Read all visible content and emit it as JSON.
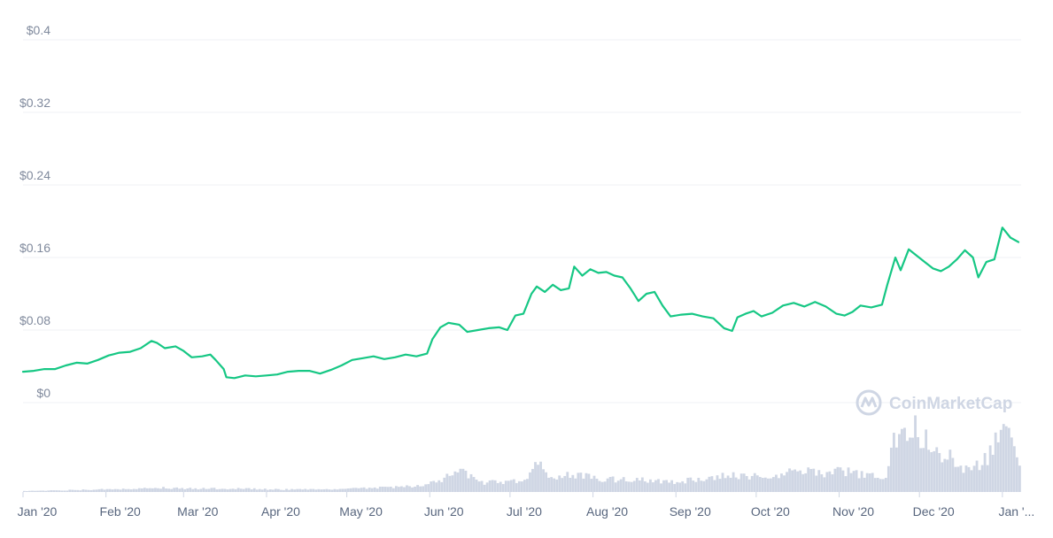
{
  "watermark": {
    "text": "CoinMarketCap",
    "icon": "coinmarketcap-logo-icon"
  },
  "colors": {
    "line": "#16c784",
    "volume": "#cfd6e4",
    "grid": "#eff2f5",
    "axis_text": "#808a9d"
  },
  "chart_data": {
    "type": "line",
    "title": "",
    "xlabel": "",
    "ylabel": "",
    "x_range": [
      "2020-01-01",
      "2021-01-08"
    ],
    "ylim": [
      0,
      0.4
    ],
    "y_ticks": [
      "$0",
      "$0.08",
      "$0.16",
      "$0.24",
      "$0.32",
      "$0.4"
    ],
    "y_tick_values": [
      0,
      0.08,
      0.16,
      0.24,
      0.32,
      0.4
    ],
    "x_ticks": [
      "Jan '20",
      "Feb '20",
      "Mar '20",
      "Apr '20",
      "May '20",
      "Jun '20",
      "Jul '20",
      "Aug '20",
      "Sep '20",
      "Oct '20",
      "Nov '20",
      "Dec '20",
      "Jan '..."
    ],
    "x_tick_dates": [
      "2020-01-01",
      "2020-02-01",
      "2020-03-01",
      "2020-04-01",
      "2020-05-01",
      "2020-06-01",
      "2020-07-01",
      "2020-08-01",
      "2020-09-01",
      "2020-10-01",
      "2020-11-01",
      "2020-12-01",
      "2021-01-01"
    ],
    "grid": true,
    "series": [
      {
        "role": "price",
        "points": [
          [
            "2020-01-01",
            0.034
          ],
          [
            "2020-01-05",
            0.035
          ],
          [
            "2020-01-09",
            0.037
          ],
          [
            "2020-01-13",
            0.037
          ],
          [
            "2020-01-17",
            0.041
          ],
          [
            "2020-01-21",
            0.044
          ],
          [
            "2020-01-25",
            0.043
          ],
          [
            "2020-01-29",
            0.047
          ],
          [
            "2020-02-02",
            0.052
          ],
          [
            "2020-02-06",
            0.055
          ],
          [
            "2020-02-10",
            0.056
          ],
          [
            "2020-02-14",
            0.06
          ],
          [
            "2020-02-18",
            0.068
          ],
          [
            "2020-02-20",
            0.066
          ],
          [
            "2020-02-23",
            0.06
          ],
          [
            "2020-02-27",
            0.062
          ],
          [
            "2020-03-01",
            0.057
          ],
          [
            "2020-03-04",
            0.05
          ],
          [
            "2020-03-08",
            0.051
          ],
          [
            "2020-03-11",
            0.053
          ],
          [
            "2020-03-13",
            0.047
          ],
          [
            "2020-03-16",
            0.037
          ],
          [
            "2020-03-17",
            0.028
          ],
          [
            "2020-03-20",
            0.027
          ],
          [
            "2020-03-24",
            0.03
          ],
          [
            "2020-03-28",
            0.029
          ],
          [
            "2020-04-01",
            0.03
          ],
          [
            "2020-04-05",
            0.031
          ],
          [
            "2020-04-09",
            0.034
          ],
          [
            "2020-04-13",
            0.035
          ],
          [
            "2020-04-17",
            0.035
          ],
          [
            "2020-04-21",
            0.032
          ],
          [
            "2020-04-25",
            0.036
          ],
          [
            "2020-04-29",
            0.041
          ],
          [
            "2020-05-03",
            0.047
          ],
          [
            "2020-05-07",
            0.049
          ],
          [
            "2020-05-11",
            0.051
          ],
          [
            "2020-05-15",
            0.048
          ],
          [
            "2020-05-19",
            0.05
          ],
          [
            "2020-05-23",
            0.053
          ],
          [
            "2020-05-27",
            0.051
          ],
          [
            "2020-05-31",
            0.054
          ],
          [
            "2020-06-02",
            0.07
          ],
          [
            "2020-06-05",
            0.083
          ],
          [
            "2020-06-08",
            0.088
          ],
          [
            "2020-06-12",
            0.086
          ],
          [
            "2020-06-15",
            0.078
          ],
          [
            "2020-06-19",
            0.08
          ],
          [
            "2020-06-23",
            0.082
          ],
          [
            "2020-06-27",
            0.083
          ],
          [
            "2020-06-30",
            0.08
          ],
          [
            "2020-07-03",
            0.096
          ],
          [
            "2020-07-06",
            0.098
          ],
          [
            "2020-07-09",
            0.12
          ],
          [
            "2020-07-11",
            0.128
          ],
          [
            "2020-07-14",
            0.122
          ],
          [
            "2020-07-17",
            0.13
          ],
          [
            "2020-07-20",
            0.124
          ],
          [
            "2020-07-23",
            0.126
          ],
          [
            "2020-07-25",
            0.15
          ],
          [
            "2020-07-28",
            0.14
          ],
          [
            "2020-07-31",
            0.147
          ],
          [
            "2020-08-03",
            0.143
          ],
          [
            "2020-08-06",
            0.144
          ],
          [
            "2020-08-09",
            0.14
          ],
          [
            "2020-08-12",
            0.138
          ],
          [
            "2020-08-15",
            0.126
          ],
          [
            "2020-08-18",
            0.112
          ],
          [
            "2020-08-21",
            0.12
          ],
          [
            "2020-08-24",
            0.122
          ],
          [
            "2020-08-27",
            0.107
          ],
          [
            "2020-08-30",
            0.095
          ],
          [
            "2020-09-03",
            0.097
          ],
          [
            "2020-09-07",
            0.098
          ],
          [
            "2020-09-11",
            0.095
          ],
          [
            "2020-09-15",
            0.093
          ],
          [
            "2020-09-19",
            0.082
          ],
          [
            "2020-09-22",
            0.079
          ],
          [
            "2020-09-24",
            0.094
          ],
          [
            "2020-09-27",
            0.098
          ],
          [
            "2020-09-30",
            0.101
          ],
          [
            "2020-10-03",
            0.095
          ],
          [
            "2020-10-07",
            0.099
          ],
          [
            "2020-10-11",
            0.107
          ],
          [
            "2020-10-15",
            0.11
          ],
          [
            "2020-10-19",
            0.106
          ],
          [
            "2020-10-23",
            0.111
          ],
          [
            "2020-10-27",
            0.106
          ],
          [
            "2020-10-31",
            0.098
          ],
          [
            "2020-11-03",
            0.096
          ],
          [
            "2020-11-06",
            0.1
          ],
          [
            "2020-11-09",
            0.107
          ],
          [
            "2020-11-13",
            0.105
          ],
          [
            "2020-11-17",
            0.108
          ],
          [
            "2020-11-19",
            0.13
          ],
          [
            "2020-11-22",
            0.16
          ],
          [
            "2020-11-24",
            0.146
          ],
          [
            "2020-11-27",
            0.169
          ],
          [
            "2020-11-30",
            0.162
          ],
          [
            "2020-12-03",
            0.155
          ],
          [
            "2020-12-06",
            0.148
          ],
          [
            "2020-12-09",
            0.145
          ],
          [
            "2020-12-12",
            0.15
          ],
          [
            "2020-12-15",
            0.158
          ],
          [
            "2020-12-18",
            0.168
          ],
          [
            "2020-12-21",
            0.16
          ],
          [
            "2020-12-23",
            0.138
          ],
          [
            "2020-12-26",
            0.155
          ],
          [
            "2020-12-29",
            0.158
          ],
          [
            "2021-01-01",
            0.193
          ],
          [
            "2021-01-04",
            0.182
          ],
          [
            "2021-01-07",
            0.177
          ]
        ]
      }
    ],
    "volume": {
      "role": "volume",
      "points": [
        [
          "2020-01-01",
          1
        ],
        [
          "2020-01-15",
          2
        ],
        [
          "2020-01-29",
          3
        ],
        [
          "2020-02-10",
          4
        ],
        [
          "2020-02-20",
          5
        ],
        [
          "2020-03-05",
          4
        ],
        [
          "2020-03-20",
          4
        ],
        [
          "2020-04-05",
          3
        ],
        [
          "2020-04-25",
          3
        ],
        [
          "2020-05-10",
          5
        ],
        [
          "2020-05-28",
          7
        ],
        [
          "2020-06-05",
          14
        ],
        [
          "2020-06-10",
          27
        ],
        [
          "2020-06-20",
          11
        ],
        [
          "2020-07-05",
          13
        ],
        [
          "2020-07-11",
          35
        ],
        [
          "2020-07-16",
          16
        ],
        [
          "2020-07-25",
          21
        ],
        [
          "2020-08-05",
          15
        ],
        [
          "2020-08-20",
          14
        ],
        [
          "2020-09-01",
          12
        ],
        [
          "2020-09-10",
          16
        ],
        [
          "2020-09-20",
          20
        ],
        [
          "2020-09-28",
          19
        ],
        [
          "2020-10-05",
          17
        ],
        [
          "2020-10-15",
          25
        ],
        [
          "2020-10-25",
          22
        ],
        [
          "2020-11-01",
          26
        ],
        [
          "2020-11-10",
          20
        ],
        [
          "2020-11-18",
          18
        ],
        [
          "2020-11-21",
          70
        ],
        [
          "2020-11-25",
          68
        ],
        [
          "2020-11-29",
          75
        ],
        [
          "2020-12-03",
          62
        ],
        [
          "2020-12-08",
          38
        ],
        [
          "2020-12-12",
          42
        ],
        [
          "2020-12-18",
          28
        ],
        [
          "2020-12-22",
          32
        ],
        [
          "2020-12-27",
          45
        ],
        [
          "2021-01-01",
          85
        ],
        [
          "2021-01-04",
          55
        ],
        [
          "2021-01-07",
          35
        ]
      ]
    }
  }
}
